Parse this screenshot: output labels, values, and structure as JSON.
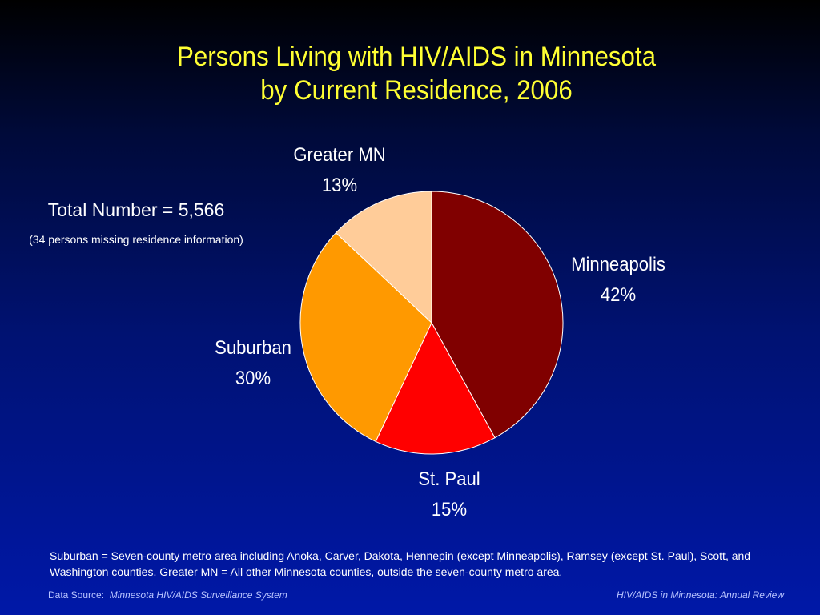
{
  "chart_data": {
    "type": "pie",
    "title": "Persons Living with HIV/AIDS in Minnesota",
    "subtitle": "by Current Residence, 2006",
    "slices": [
      {
        "name": "Minneapolis",
        "value": 42,
        "percent_label": "42%",
        "color": "#800000"
      },
      {
        "name": "St. Paul",
        "value": 15,
        "percent_label": "15%",
        "color": "#ff0000"
      },
      {
        "name": "Suburban",
        "value": 30,
        "percent_label": "30%",
        "color": "#ff9900"
      },
      {
        "name": "Greater MN",
        "value": 13,
        "percent_label": "13%",
        "color": "#ffcc99"
      }
    ],
    "start": "12 o'clock",
    "direction": "clockwise",
    "legend": "none"
  },
  "annotations": {
    "total": "Total Number = 5,566",
    "missing": "(34 persons missing residence information)"
  },
  "footnote": "Suburban = Seven-county metro area including Anoka, Carver, Dakota, Hennepin (except Minneapolis), Ramsey (except St. Paul), Scott, and Washington counties.  Greater MN = All other Minnesota counties, outside the seven-county metro area.",
  "source": {
    "prefix": "Data Source:",
    "name": "Minnesota HIV/AIDS Surveillance System"
  },
  "review": "HIV/AIDS in Minnesota: Annual Review",
  "colors": {
    "title": "#ffff33",
    "background_top": "#000000",
    "background_bottom": "#0018a8"
  }
}
